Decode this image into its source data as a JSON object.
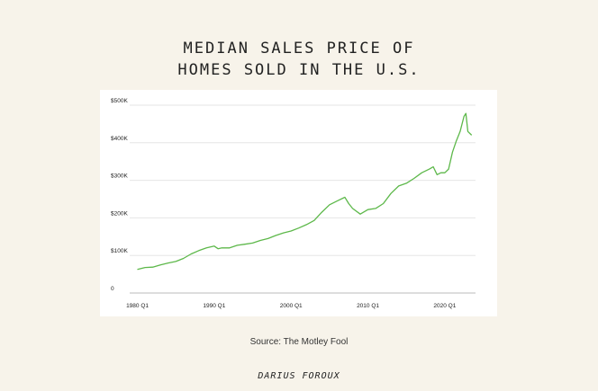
{
  "page": {
    "title_line1": "MEDIAN SALES PRICE OF",
    "title_line2": "HOMES SOLD IN THE U.S.",
    "source": "Source: The Motley Fool",
    "brand": "DARIUS FOROUX"
  },
  "chart_data": {
    "type": "line",
    "title": "MEDIAN SALES PRICE OF HOMES SOLD IN THE U.S.",
    "xlabel": "",
    "ylabel": "",
    "x_ticks": [
      "1980 Q1",
      "1990 Q1",
      "2000 Q1",
      "2010 Q1",
      "2020 Q1"
    ],
    "x_tick_values": [
      1980,
      1990,
      2000,
      2010,
      2020
    ],
    "y_ticks": [
      "0",
      "$100K",
      "$200K",
      "$300K",
      "$400K",
      "$500K"
    ],
    "y_tick_values": [
      0,
      100000,
      200000,
      300000,
      400000,
      500000
    ],
    "xlim": [
      1979,
      2024
    ],
    "ylim": [
      0,
      500000
    ],
    "grid": true,
    "line_color": "#5db84a",
    "series": [
      {
        "x": [
          1980.0,
          1981.0,
          1982.0,
          1983.0,
          1984.0,
          1985.0,
          1986.0,
          1987.0,
          1988.0,
          1989.0,
          1990.0,
          1990.5,
          1991.0,
          1992.0,
          1993.0,
          1994.0,
          1995.0,
          1996.0,
          1997.0,
          1998.0,
          1999.0,
          2000.0,
          2001.0,
          2002.0,
          2003.0,
          2004.0,
          2005.0,
          2006.0,
          2007.0,
          2007.5,
          2008.0,
          2009.0,
          2010.0,
          2011.0,
          2012.0,
          2013.0,
          2014.0,
          2015.0,
          2016.0,
          2017.0,
          2018.0,
          2018.5,
          2019.0,
          2019.5,
          2020.0,
          2020.5,
          2021.0,
          2021.5,
          2022.0,
          2022.5,
          2022.75,
          2023.0,
          2023.5
        ],
        "y": [
          63000,
          68000,
          69000,
          75000,
          80000,
          84000,
          92000,
          104000,
          113000,
          120000,
          125000,
          118000,
          120000,
          120000,
          127000,
          130000,
          133000,
          140000,
          145000,
          153000,
          160000,
          165000,
          173000,
          182000,
          193000,
          215000,
          235000,
          245000,
          255000,
          238000,
          225000,
          210000,
          222000,
          225000,
          238000,
          265000,
          285000,
          292000,
          305000,
          320000,
          330000,
          336000,
          315000,
          320000,
          320000,
          330000,
          375000,
          405000,
          430000,
          470000,
          478000,
          430000,
          420000
        ]
      }
    ]
  }
}
